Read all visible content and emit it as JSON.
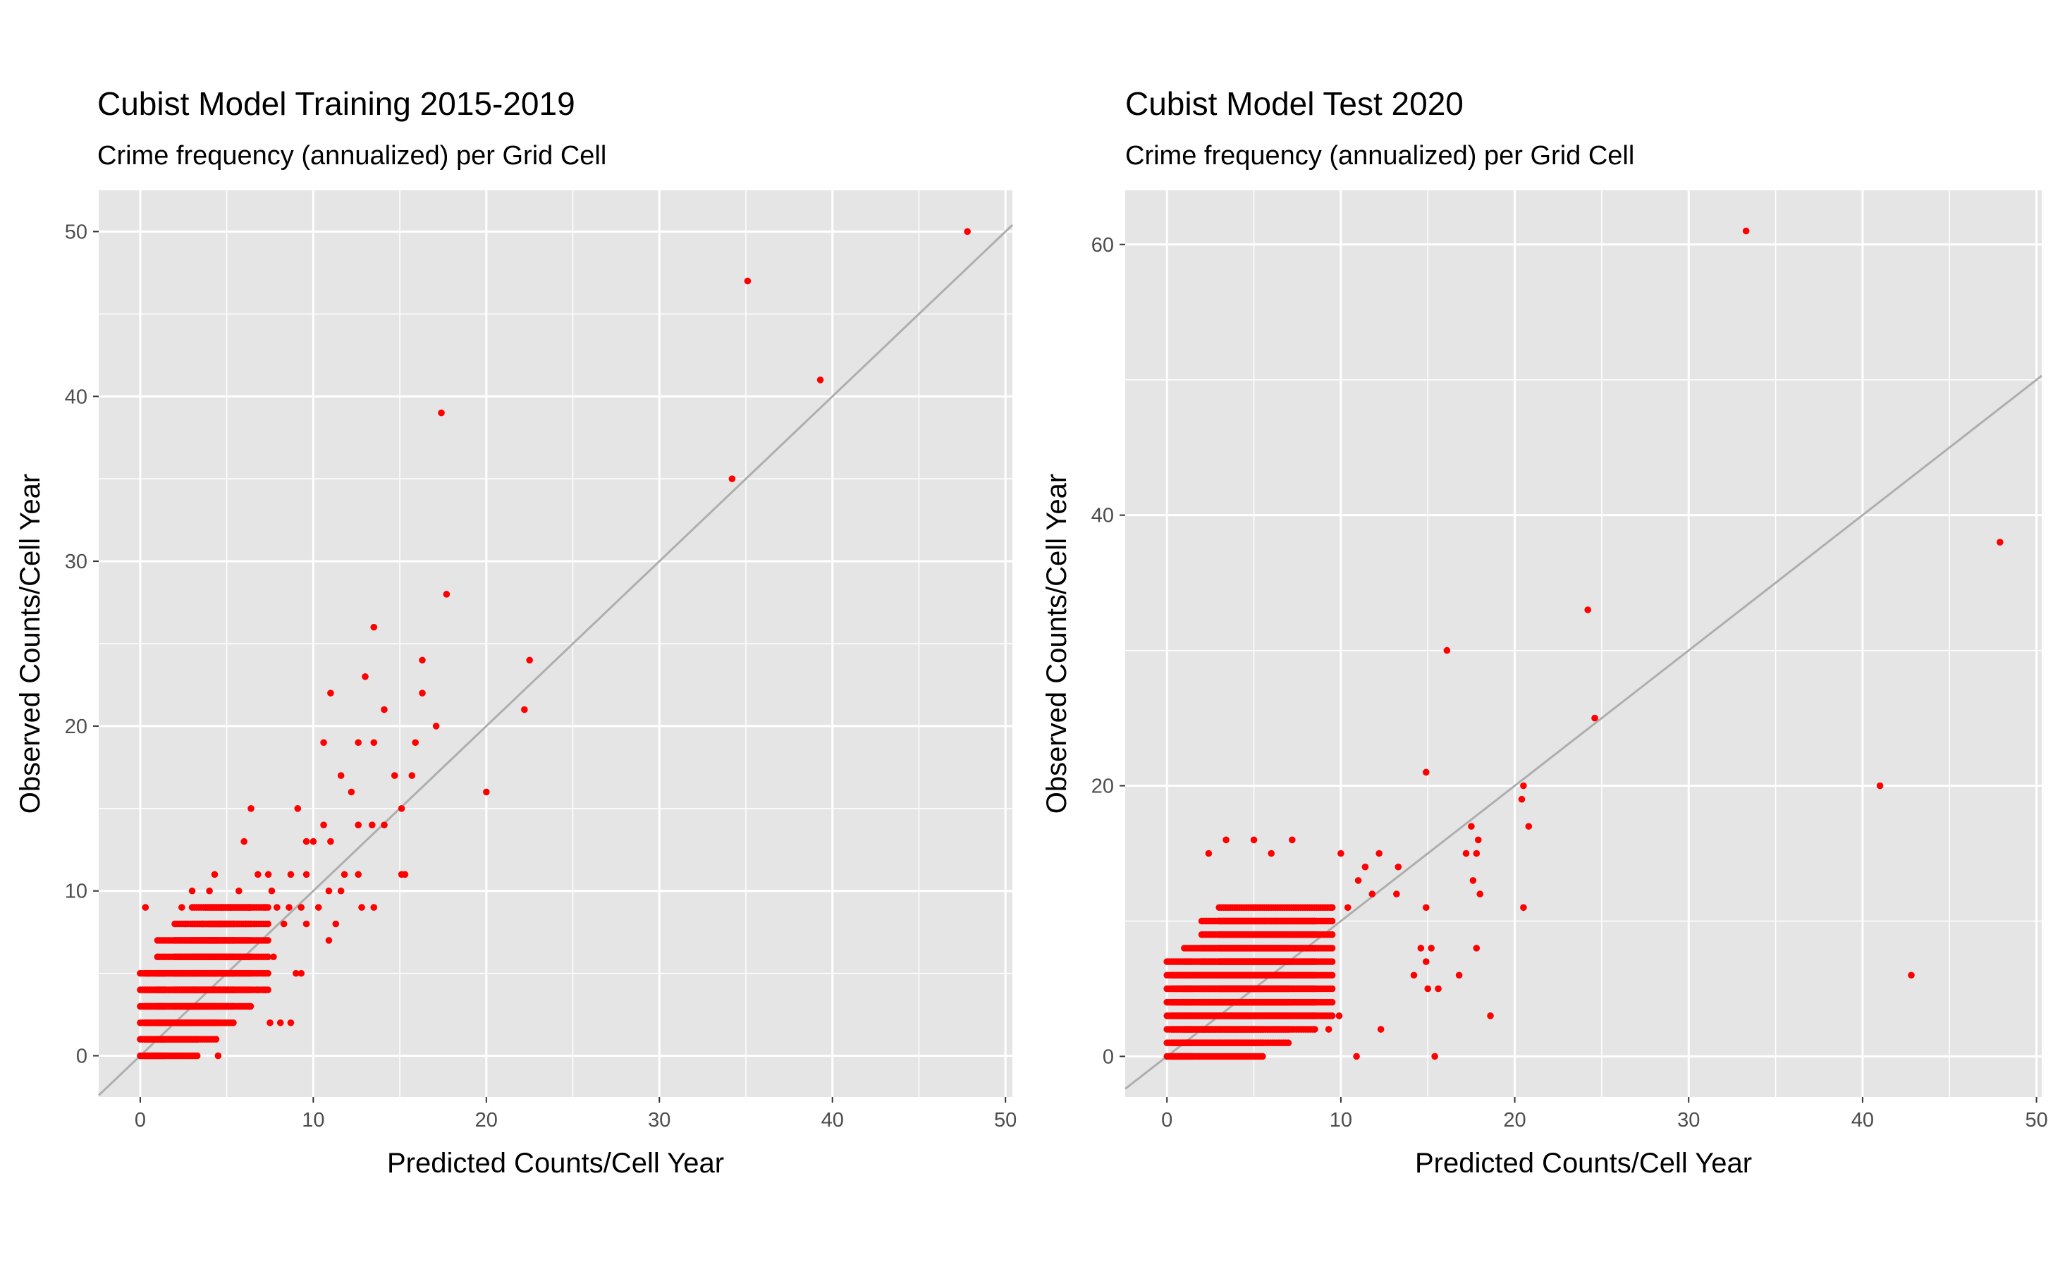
{
  "colors": {
    "panel_bg": "#e5e5e5",
    "grid": "#ffffff",
    "points": "#ff0000",
    "reference_line": "#aeaeae",
    "tick_text": "#4d4d4d",
    "text": "#000000"
  },
  "chart_data": [
    {
      "type": "scatter",
      "title": "Cubist Model Training 2015-2019",
      "subtitle": "Crime frequency (annualized) per Grid Cell",
      "xlabel": "Predicted Counts/Cell Year",
      "ylabel": "Observed Counts/Cell Year",
      "xlim": [
        -2.4,
        50.4
      ],
      "ylim": [
        -2.5,
        52.5
      ],
      "xticks": [
        0,
        10,
        20,
        30,
        40,
        50
      ],
      "yticks": [
        0,
        10,
        20,
        30,
        40,
        50
      ],
      "grid": true,
      "reference_line": "y = x",
      "points": [
        [
          47.8,
          50
        ],
        [
          35.1,
          47
        ],
        [
          39.3,
          41
        ],
        [
          17.4,
          39
        ],
        [
          34.2,
          35
        ],
        [
          17.7,
          28
        ],
        [
          13.5,
          26
        ],
        [
          16.3,
          24
        ],
        [
          22.5,
          24
        ],
        [
          11.0,
          22
        ],
        [
          16.3,
          22
        ],
        [
          13.0,
          23
        ],
        [
          14.1,
          21
        ],
        [
          22.2,
          21
        ],
        [
          17.1,
          20
        ],
        [
          20.0,
          16
        ],
        [
          10.6,
          19
        ],
        [
          12.6,
          19
        ],
        [
          13.5,
          19
        ],
        [
          15.9,
          19
        ],
        [
          11.6,
          17
        ],
        [
          14.7,
          17
        ],
        [
          15.7,
          17
        ],
        [
          12.2,
          16
        ],
        [
          14.1,
          14
        ],
        [
          15.1,
          15
        ],
        [
          10.6,
          14
        ],
        [
          13.4,
          14
        ],
        [
          12.6,
          14
        ],
        [
          11.0,
          13
        ],
        [
          10.0,
          13
        ],
        [
          9.6,
          13
        ],
        [
          6.4,
          15
        ],
        [
          9.1,
          15
        ],
        [
          6.0,
          13
        ],
        [
          8.7,
          11
        ],
        [
          9.6,
          11
        ],
        [
          11.8,
          11
        ],
        [
          12.6,
          11
        ],
        [
          15.3,
          11
        ],
        [
          15.1,
          11
        ],
        [
          10.9,
          10
        ],
        [
          11.6,
          10
        ],
        [
          9.3,
          9
        ],
        [
          10.3,
          9
        ],
        [
          13.5,
          9
        ],
        [
          12.8,
          9
        ],
        [
          10.9,
          7
        ],
        [
          11.3,
          8
        ],
        [
          9.6,
          8
        ],
        [
          9.0,
          5
        ],
        [
          9.3,
          5
        ],
        [
          8.1,
          2
        ],
        [
          8.7,
          2
        ],
        [
          7.5,
          2
        ],
        [
          7.7,
          6
        ],
        [
          0.3,
          9
        ],
        [
          0.5,
          5
        ],
        [
          1.0,
          6
        ],
        [
          2.4,
          9
        ],
        [
          3.0,
          10
        ],
        [
          4.3,
          11
        ],
        [
          4.0,
          10
        ],
        [
          5.7,
          10
        ],
        [
          7.6,
          10
        ],
        [
          3.8,
          9
        ],
        [
          4.7,
          9
        ],
        [
          5.2,
          9
        ],
        [
          6.3,
          9
        ],
        [
          7.2,
          9
        ],
        [
          7.9,
          9
        ],
        [
          8.6,
          9
        ],
        [
          2.6,
          8
        ],
        [
          3.6,
          8
        ],
        [
          4.6,
          8
        ],
        [
          5.4,
          8
        ],
        [
          6.1,
          8
        ],
        [
          6.6,
          8
        ],
        [
          8.3,
          8
        ],
        [
          6.8,
          11
        ],
        [
          7.4,
          11
        ],
        [
          4.3,
          2
        ],
        [
          3.3,
          1
        ],
        [
          4.5,
          0
        ],
        [
          6.8,
          4
        ],
        [
          6.3,
          3
        ],
        [
          5.1,
          3
        ],
        [
          7.2,
          4
        ]
      ],
      "dense_clusters": [
        {
          "x_from": 0.0,
          "x_to": 1.5,
          "y_from": 0,
          "y_to": 5
        },
        {
          "x_from": 0.3,
          "x_to": 3.3,
          "y_from": 0,
          "y_to": 5
        },
        {
          "x_from": 1.0,
          "x_to": 4.5,
          "y_from": 1,
          "y_to": 7
        },
        {
          "x_from": 2.0,
          "x_to": 5.5,
          "y_from": 2,
          "y_to": 8
        },
        {
          "x_from": 3.0,
          "x_to": 6.5,
          "y_from": 3,
          "y_to": 9
        },
        {
          "x_from": 4.0,
          "x_to": 7.5,
          "y_from": 4,
          "y_to": 9
        }
      ]
    },
    {
      "type": "scatter",
      "title": "Cubist Model Test 2020",
      "subtitle": "Crime frequency (annualized) per Grid Cell",
      "xlabel": "Predicted Counts/Cell Year",
      "ylabel": "Observed Counts/Cell Year",
      "xlim": [
        -2.4,
        50.3
      ],
      "ylim": [
        -3.0,
        64.0
      ],
      "xticks": [
        0,
        10,
        20,
        30,
        40,
        50
      ],
      "yticks": [
        0,
        20,
        40,
        60
      ],
      "grid": true,
      "reference_line": "y = x",
      "points": [
        [
          33.3,
          61
        ],
        [
          47.9,
          38
        ],
        [
          24.2,
          33
        ],
        [
          16.1,
          30
        ],
        [
          24.6,
          25
        ],
        [
          14.9,
          21
        ],
        [
          41.0,
          20
        ],
        [
          20.5,
          20
        ],
        [
          20.4,
          19
        ],
        [
          20.8,
          17
        ],
        [
          17.5,
          17
        ],
        [
          17.9,
          16
        ],
        [
          17.2,
          15
        ],
        [
          17.8,
          15
        ],
        [
          17.6,
          13
        ],
        [
          13.3,
          14
        ],
        [
          18.0,
          12
        ],
        [
          12.2,
          15
        ],
        [
          20.5,
          11
        ],
        [
          42.8,
          6
        ],
        [
          18.6,
          3
        ],
        [
          15.4,
          0
        ],
        [
          10.9,
          0
        ],
        [
          13.2,
          12
        ],
        [
          11.8,
          12
        ],
        [
          11.4,
          14
        ],
        [
          10.0,
          15
        ],
        [
          11.0,
          13
        ],
        [
          14.9,
          11
        ],
        [
          14.6,
          8
        ],
        [
          14.9,
          7
        ],
        [
          15.2,
          8
        ],
        [
          15.0,
          5
        ],
        [
          15.6,
          5
        ],
        [
          16.8,
          6
        ],
        [
          17.8,
          8
        ],
        [
          14.2,
          6
        ],
        [
          12.3,
          2
        ],
        [
          10.4,
          11
        ],
        [
          9.5,
          11
        ],
        [
          6.0,
          15
        ],
        [
          7.2,
          16
        ],
        [
          5.0,
          16
        ],
        [
          3.4,
          16
        ],
        [
          2.4,
          15
        ],
        [
          9.9,
          3
        ],
        [
          9.3,
          2
        ],
        [
          8.4,
          3
        ]
      ],
      "dense_clusters": [
        {
          "x_from": 0.0,
          "x_to": 1.5,
          "y_from": 0,
          "y_to": 7
        },
        {
          "x_from": 0.3,
          "x_to": 5.5,
          "y_from": 0,
          "y_to": 6
        },
        {
          "x_from": 1.0,
          "x_to": 7.0,
          "y_from": 1,
          "y_to": 8
        },
        {
          "x_from": 2.0,
          "x_to": 8.5,
          "y_from": 2,
          "y_to": 10
        },
        {
          "x_from": 3.0,
          "x_to": 9.5,
          "y_from": 3,
          "y_to": 11
        }
      ]
    }
  ]
}
